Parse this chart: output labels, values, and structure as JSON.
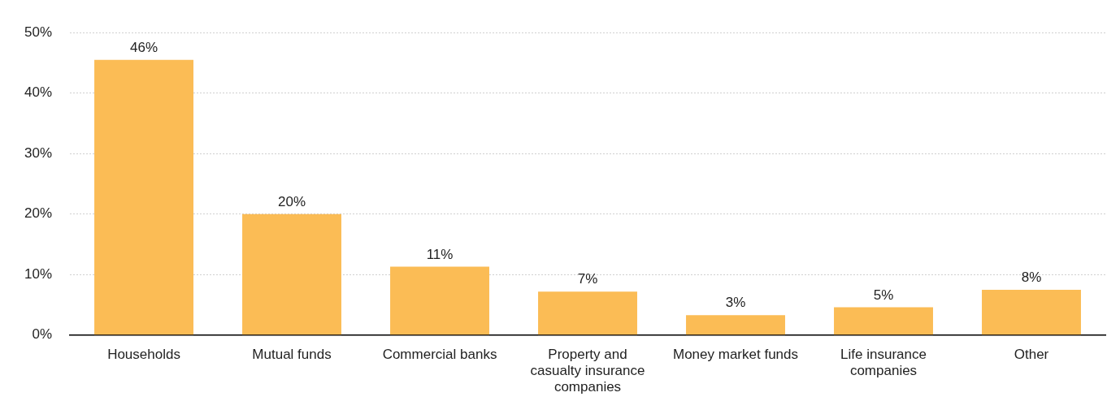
{
  "chart_data": {
    "type": "bar",
    "categories": [
      "Households",
      "Mutual funds",
      "Commercial banks",
      "Property and casualty insurance companies",
      "Money market funds",
      "Life insurance companies",
      "Other"
    ],
    "values": [
      45.5,
      20.0,
      11.3,
      7.2,
      3.3,
      4.6,
      7.5
    ],
    "value_labels": [
      "46%",
      "20%",
      "11%",
      "7%",
      "3%",
      "5%",
      "8%"
    ],
    "color": "#fbbc55",
    "ylim": [
      0,
      50
    ],
    "yticks": [
      {
        "value": 0,
        "label": "0%"
      },
      {
        "value": 10,
        "label": "10%"
      },
      {
        "value": 20,
        "label": "20%"
      },
      {
        "value": 30,
        "label": "30%"
      },
      {
        "value": 40,
        "label": "40%"
      },
      {
        "value": 50,
        "label": "50%"
      }
    ],
    "grid": "y",
    "legend": false
  }
}
